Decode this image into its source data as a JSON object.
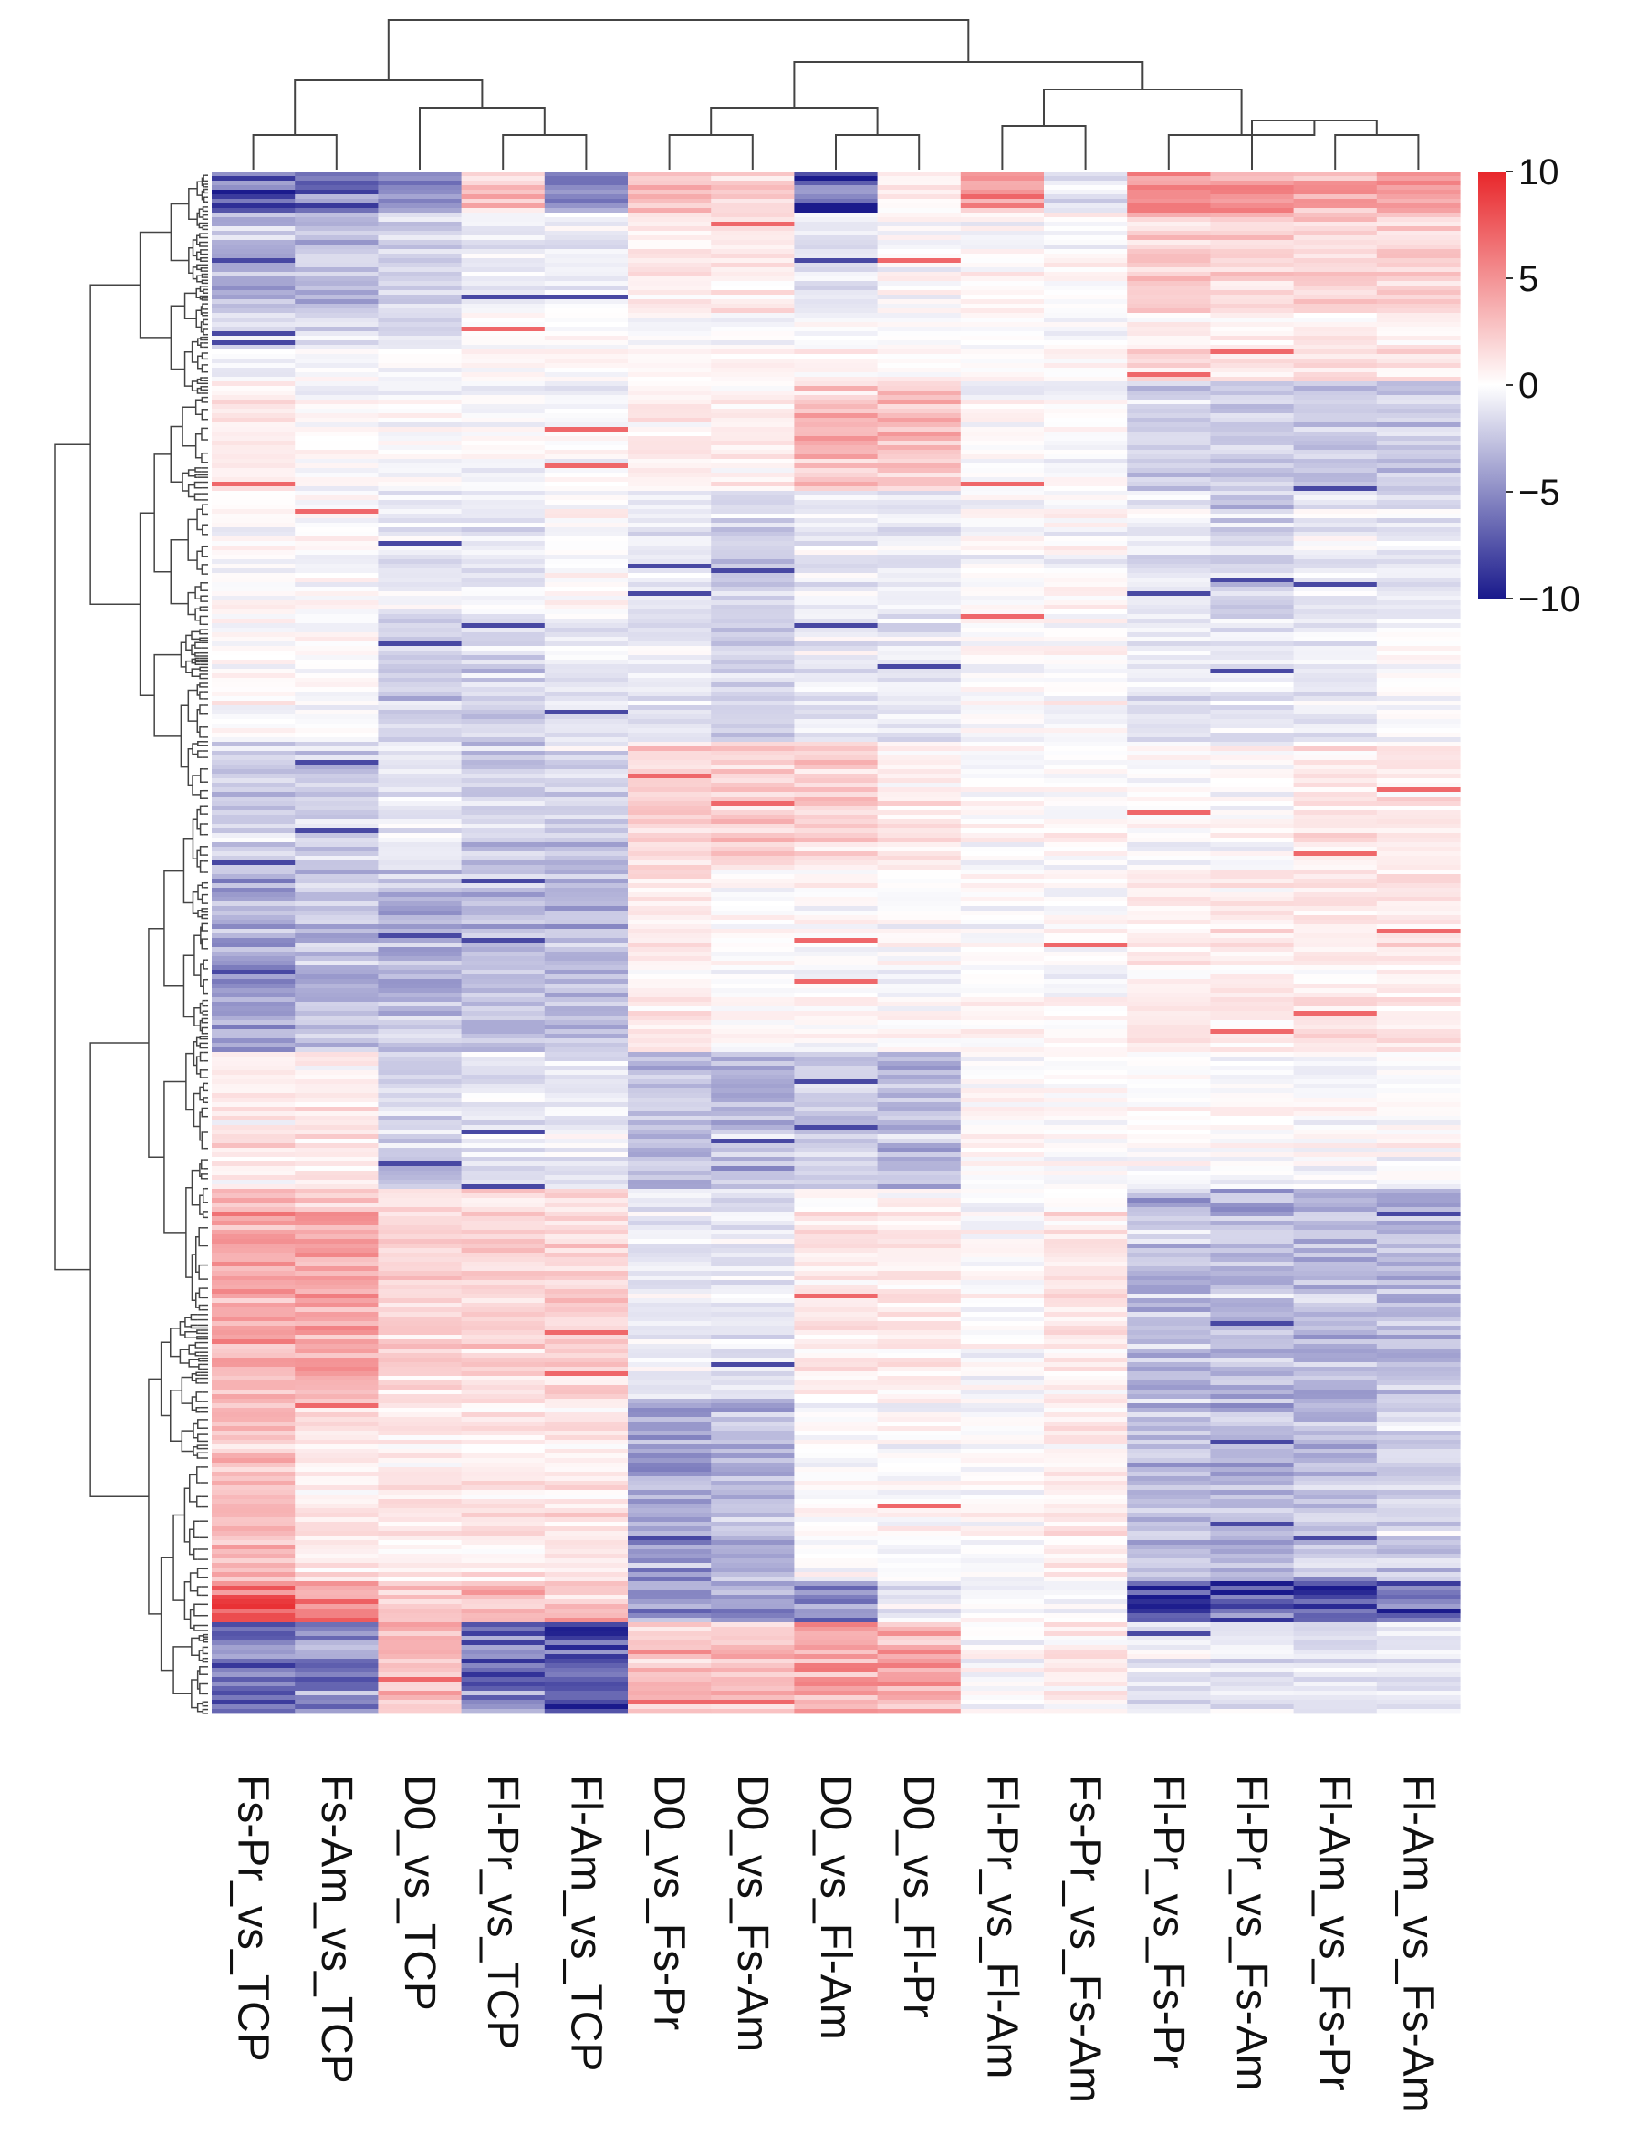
{
  "chart_data": {
    "type": "heatmap",
    "title": "",
    "columns": [
      "Fs-Pr_vs_TCP",
      "Fs-Am_vs_TCP",
      "D0_vs_TCP",
      "Fl-Pr_vs_TCP",
      "Fl-Am_vs_TCP",
      "D0_vs_Fs-Pr",
      "D0_vs_Fs-Am",
      "D0_vs_Fl-Am",
      "D0_vs_Fl-Pr",
      "Fl-Pr_vs_Fl-Am",
      "Fs-Pr_vs_Fs-Am",
      "Fl-Pr_vs_Fs-Pr",
      "Fl-Pr_vs_Fs-Am",
      "Fl-Am_vs_Fs-Pr",
      "Fl-Am_vs_Fs-Am"
    ],
    "colorbar": {
      "min": -10,
      "max": 10,
      "ticks": [
        10,
        5,
        0,
        -5,
        -10
      ],
      "tick_labels": [
        "10",
        "5",
        "0",
        "−5",
        "−10"
      ],
      "colors": {
        "low": "#1a1a8c",
        "mid": "#ffffff",
        "high": "#e8262a"
      }
    },
    "row_blocks": [
      {
        "fraction": 0.03,
        "values": [
          -7,
          -6,
          -4,
          3,
          -5,
          3,
          2,
          -8,
          1,
          5,
          -1,
          5,
          5,
          4,
          4
        ]
      },
      {
        "fraction": 0.07,
        "values": [
          -3,
          -3,
          -2,
          -1,
          -1,
          1,
          1,
          -1,
          0,
          0,
          0,
          2,
          2,
          2,
          2
        ]
      },
      {
        "fraction": 0.05,
        "values": [
          -1,
          -1,
          -1,
          0,
          0,
          0,
          0,
          0,
          0,
          0,
          0,
          1,
          1,
          1,
          1
        ]
      },
      {
        "fraction": 0.08,
        "values": [
          1,
          0,
          0,
          0,
          0,
          1,
          1,
          3,
          3,
          0,
          0,
          -2,
          -2,
          -2,
          -2
        ]
      },
      {
        "fraction": 0.09,
        "values": [
          0,
          0,
          -1,
          -1,
          0,
          -1,
          -2,
          -1,
          -1,
          0,
          0,
          -1,
          -2,
          -1,
          -1
        ]
      },
      {
        "fraction": 0.09,
        "values": [
          0,
          0,
          -2,
          -2,
          -1,
          -1,
          -2,
          -1,
          -1,
          0,
          0,
          -1,
          -1,
          -1,
          0
        ]
      },
      {
        "fraction": 0.09,
        "values": [
          -2,
          -2,
          -1,
          -2,
          -2,
          2,
          2,
          2,
          1,
          0,
          0,
          0,
          0,
          1,
          1
        ]
      },
      {
        "fraction": 0.13,
        "values": [
          -4,
          -3,
          -3,
          -3,
          -3,
          1,
          0,
          0,
          0,
          0,
          0,
          1,
          1,
          1,
          1
        ]
      },
      {
        "fraction": 0.1,
        "values": [
          1,
          1,
          -2,
          -1,
          -1,
          -3,
          -3,
          -2,
          -3,
          0,
          0,
          0,
          0,
          0,
          0
        ]
      },
      {
        "fraction": 0.15,
        "values": [
          4,
          4,
          2,
          2,
          2,
          -1,
          -1,
          1,
          1,
          0,
          1,
          -3,
          -3,
          -3,
          -3
        ]
      },
      {
        "fraction": 0.13,
        "values": [
          3,
          1,
          1,
          1,
          1,
          -4,
          -3,
          0,
          0,
          0,
          1,
          -3,
          -3,
          -3,
          -2
        ]
      },
      {
        "fraction": 0.03,
        "values": [
          7,
          6,
          3,
          3,
          3,
          -4,
          -4,
          -5,
          -1,
          0,
          0,
          -8,
          -7,
          -8,
          -7
        ]
      },
      {
        "fraction": 0.065,
        "values": [
          -6,
          -5,
          3,
          -6,
          -7,
          3,
          3,
          4,
          4,
          0,
          1,
          -1,
          -1,
          -1,
          -1
        ]
      }
    ]
  }
}
